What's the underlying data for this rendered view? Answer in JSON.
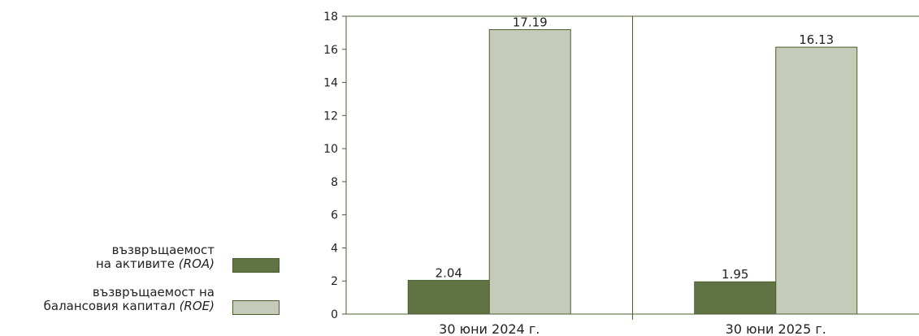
{
  "chart_data": {
    "type": "bar",
    "categories": [
      "30 юни 2024 г.",
      "30 юни 2025 г."
    ],
    "series": [
      {
        "name": "възвръщаемост на активите (ROA)",
        "values": [
          2.04,
          1.95
        ],
        "color": "#5f7344"
      },
      {
        "name": "възвръщаемост на балансовия капитал (ROE)",
        "values": [
          17.19,
          16.13
        ],
        "color": "#c5cbb8"
      }
    ],
    "data_labels": [
      [
        "2.04",
        "1.95"
      ],
      [
        "17.19",
        "16.13"
      ]
    ],
    "ylim": [
      0,
      18
    ],
    "yticks": [
      0,
      2,
      4,
      6,
      8,
      10,
      12,
      14,
      16,
      18
    ],
    "xlabel": "",
    "ylabel": "",
    "grid": false,
    "legend_position": "left"
  },
  "legend": {
    "items": [
      {
        "line1": "възвръщаемост",
        "line2": "на активите",
        "abbr": "(ROA)",
        "color": "#5f7344"
      },
      {
        "line1": "възвръщаемост на",
        "line2": "балансовия капитал",
        "abbr": "(ROE)",
        "color": "#c5cbb8"
      }
    ]
  }
}
